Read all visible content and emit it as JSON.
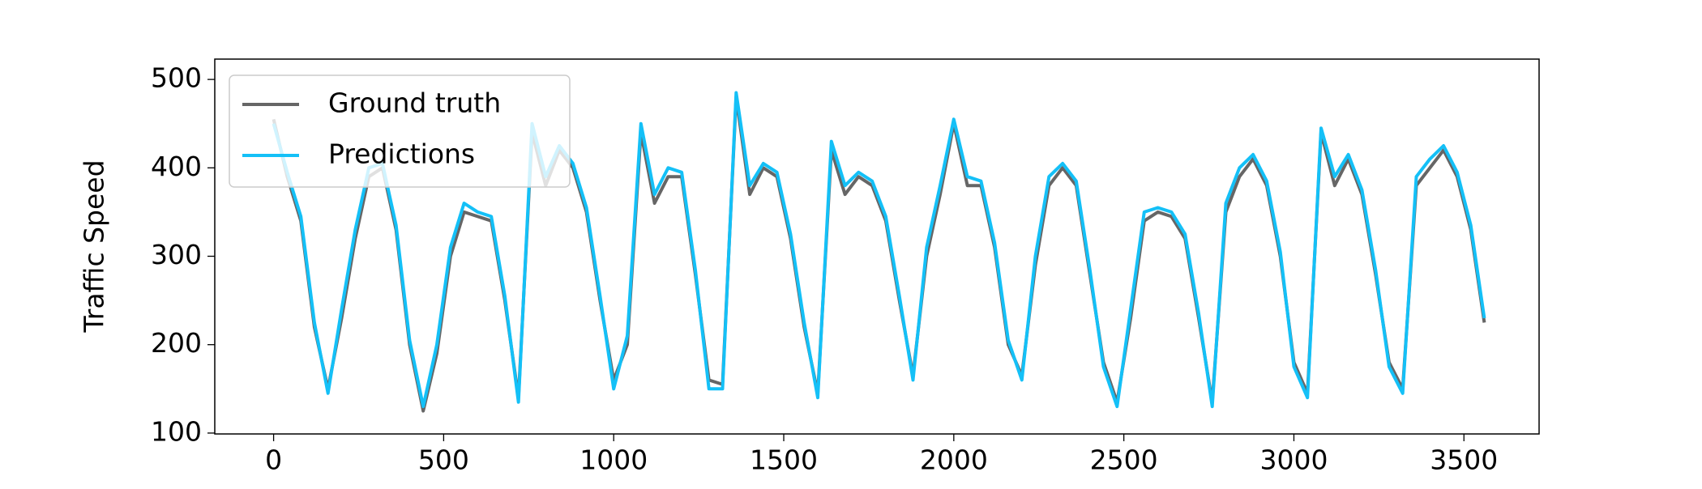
{
  "chart_data": {
    "type": "line",
    "y_label": "Traffic Speed",
    "x": [
      0,
      40,
      80,
      120,
      160,
      200,
      240,
      280,
      320,
      360,
      400,
      440,
      480,
      520,
      560,
      600,
      640,
      680,
      720,
      760,
      800,
      840,
      880,
      920,
      960,
      1000,
      1040,
      1080,
      1120,
      1160,
      1200,
      1240,
      1280,
      1320,
      1360,
      1400,
      1440,
      1480,
      1520,
      1560,
      1600,
      1640,
      1680,
      1720,
      1760,
      1800,
      1840,
      1880,
      1920,
      1960,
      2000,
      2040,
      2080,
      2120,
      2160,
      2200,
      2240,
      2280,
      2320,
      2360,
      2400,
      2440,
      2480,
      2520,
      2560,
      2600,
      2640,
      2680,
      2720,
      2760,
      2800,
      2840,
      2880,
      2920,
      2960,
      3000,
      3040,
      3080,
      3120,
      3160,
      3200,
      3240,
      3280,
      3320,
      3360,
      3400,
      3440,
      3480,
      3520,
      3560
    ],
    "series": [
      {
        "name": "Ground truth",
        "color": "#666666",
        "values": [
          455,
          390,
          340,
          220,
          150,
          230,
          320,
          390,
          400,
          330,
          200,
          125,
          190,
          300,
          350,
          345,
          340,
          250,
          140,
          440,
          380,
          420,
          400,
          350,
          250,
          160,
          200,
          440,
          360,
          390,
          390,
          280,
          160,
          155,
          480,
          370,
          400,
          390,
          320,
          220,
          145,
          420,
          370,
          390,
          380,
          340,
          250,
          165,
          300,
          370,
          450,
          380,
          380,
          310,
          200,
          165,
          290,
          380,
          400,
          380,
          280,
          180,
          135,
          230,
          340,
          350,
          345,
          320,
          230,
          135,
          350,
          390,
          410,
          380,
          300,
          180,
          145,
          440,
          380,
          410,
          370,
          280,
          180,
          150,
          380,
          400,
          420,
          390,
          330,
          225
        ]
      },
      {
        "name": "Predictions",
        "color": "#14c0f7",
        "values": [
          450,
          395,
          345,
          225,
          145,
          240,
          330,
          400,
          405,
          335,
          205,
          130,
          200,
          310,
          360,
          350,
          345,
          255,
          135,
          450,
          390,
          425,
          405,
          355,
          255,
          150,
          210,
          450,
          370,
          400,
          395,
          285,
          150,
          150,
          485,
          380,
          405,
          395,
          325,
          225,
          140,
          430,
          380,
          395,
          385,
          345,
          255,
          160,
          310,
          380,
          455,
          390,
          385,
          315,
          205,
          160,
          300,
          390,
          405,
          385,
          285,
          175,
          130,
          240,
          350,
          355,
          350,
          325,
          235,
          130,
          360,
          400,
          415,
          385,
          305,
          175,
          140,
          445,
          390,
          415,
          375,
          285,
          175,
          145,
          390,
          410,
          425,
          395,
          335,
          230
        ]
      }
    ],
    "xlim": [
      -173,
      3721
    ],
    "ylim": [
      99,
      523
    ],
    "xticks": [
      0,
      500,
      1000,
      1500,
      2000,
      2500,
      3000,
      3500
    ],
    "yticks": [
      100,
      200,
      300,
      400,
      500
    ],
    "legend": "upper left"
  }
}
